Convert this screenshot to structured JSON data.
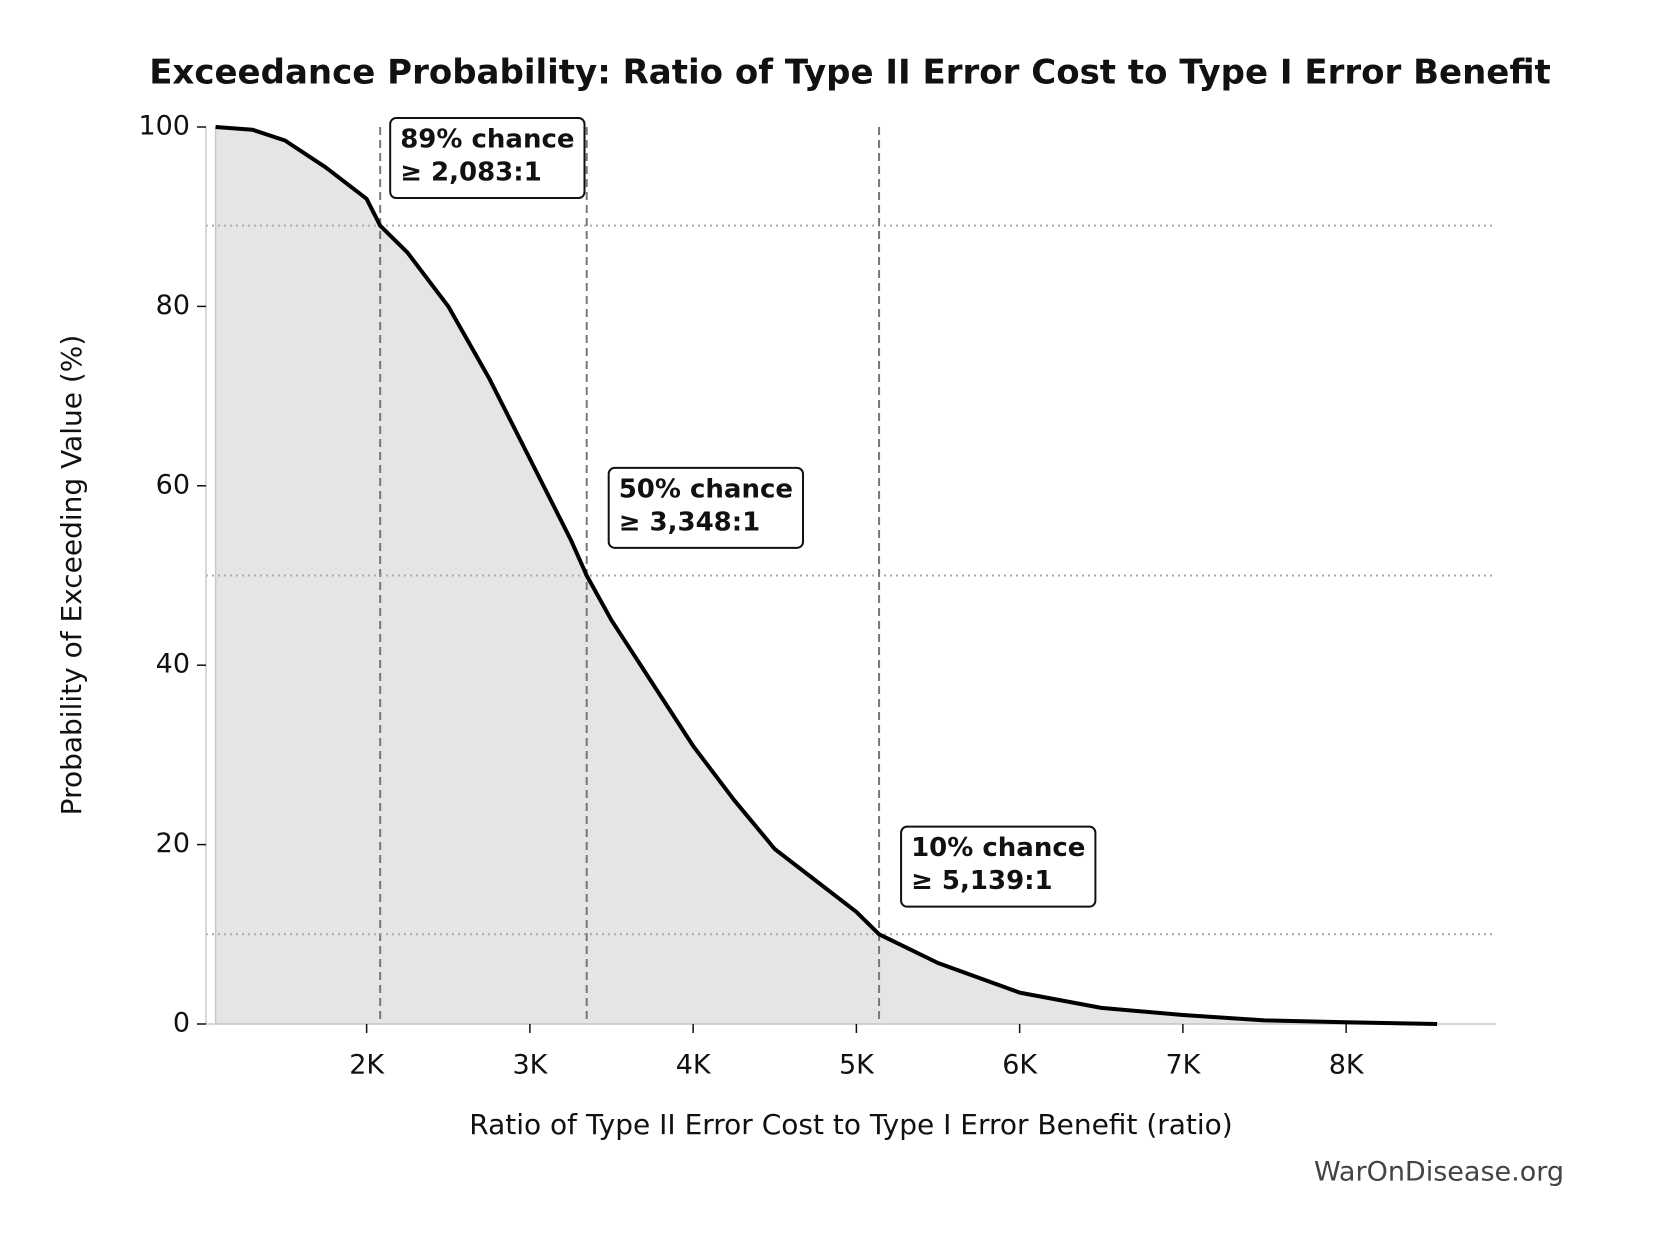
{
  "chart_data": {
    "type": "area",
    "title": "Exceedance Probability: Ratio of Type II Error Cost to Type I Error Benefit",
    "x_label": "Ratio of Type II Error Cost to Type I Error Benefit (ratio)",
    "y_label": "Probability of Exceeding Value (%)",
    "watermark": "WarOnDisease.org",
    "x": [
      1075,
      1300,
      1500,
      1750,
      2000,
      2083,
      2250,
      2500,
      2750,
      3000,
      3250,
      3348,
      3500,
      3750,
      4000,
      4250,
      4500,
      4750,
      5000,
      5139,
      5500,
      6000,
      6500,
      7000,
      7500,
      8000,
      8557
    ],
    "values": [
      100,
      99.7,
      98.5,
      95.5,
      92,
      89,
      86,
      80,
      72,
      63,
      54,
      50,
      45,
      38,
      31,
      25,
      19.5,
      16,
      12.5,
      10,
      6.8,
      3.5,
      1.8,
      1.0,
      0.4,
      0.2,
      0
    ],
    "color": "#000000",
    "fill_color": "#e5e5e5",
    "xlim": [
      1016,
      8918
    ],
    "ylim": [
      0,
      100
    ],
    "xticks": [
      {
        "value": 2000,
        "label": "2K"
      },
      {
        "value": 3000,
        "label": "3K"
      },
      {
        "value": 4000,
        "label": "4K"
      },
      {
        "value": 5000,
        "label": "5K"
      },
      {
        "value": 6000,
        "label": "6K"
      },
      {
        "value": 7000,
        "label": "7K"
      },
      {
        "value": 8000,
        "label": "8K"
      }
    ],
    "yticks": [
      0,
      20,
      40,
      60,
      80,
      100
    ],
    "annotations": [
      {
        "x": 2083,
        "y": 89,
        "lines": [
          "89% chance",
          "≥ 2,083:1"
        ]
      },
      {
        "x": 3348,
        "y": 50,
        "lines": [
          "50% chance",
          "≥ 3,348:1"
        ]
      },
      {
        "x": 5139,
        "y": 10,
        "lines": [
          "10% chance",
          "≥ 5,139:1"
        ]
      }
    ]
  }
}
